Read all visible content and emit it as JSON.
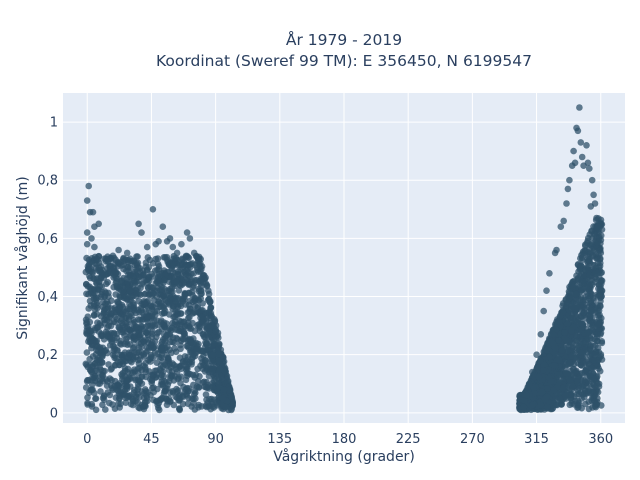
{
  "chart_data": {
    "type": "scatter",
    "title_line1": "År 1979 - 2019",
    "title_line2": "Koordinat (Sweref 99 TM): E 356450, N 6199547",
    "xlabel": "Vågriktning (grader)",
    "ylabel": "Signifikant våghöjd (m)",
    "xlim": [
      -17,
      377
    ],
    "ylim": [
      -0.035,
      1.1
    ],
    "x_ticks": [
      0,
      45,
      90,
      135,
      180,
      225,
      270,
      315,
      360
    ],
    "x_tick_labels": [
      "0",
      "45",
      "90",
      "135",
      "180",
      "225",
      "270",
      "315",
      "360"
    ],
    "y_ticks": [
      0,
      0.2,
      0.4,
      0.6,
      0.8,
      1
    ],
    "y_tick_labels": [
      "0",
      "0,2",
      "0,4",
      "0,6",
      "0,8",
      "1"
    ],
    "grid": true,
    "marker_color": "#2f5269",
    "plot_background": "#e5ecf6",
    "clusters": [
      {
        "x_min": -1,
        "x_max": 102,
        "y_min": 0.0,
        "y_max_typical": 0.5,
        "y_max": 0.78
      },
      {
        "x_min": 303,
        "x_max": 361,
        "y_min": 0.0,
        "y_max_typical": 0.7,
        "y_max": 1.05
      }
    ],
    "points": [
      [
        1,
        0.78
      ],
      [
        0,
        0.73
      ],
      [
        2,
        0.69
      ],
      [
        4,
        0.69
      ],
      [
        5,
        0.64
      ],
      [
        0,
        0.62
      ],
      [
        3,
        0.6
      ],
      [
        8,
        0.65
      ],
      [
        0,
        0.58
      ],
      [
        5,
        0.57
      ],
      [
        12,
        0.53
      ],
      [
        18,
        0.54
      ],
      [
        22,
        0.56
      ],
      [
        28,
        0.55
      ],
      [
        30,
        0.53
      ],
      [
        36,
        0.65
      ],
      [
        38,
        0.62
      ],
      [
        42,
        0.57
      ],
      [
        46,
        0.7
      ],
      [
        48,
        0.58
      ],
      [
        50,
        0.59
      ],
      [
        53,
        0.64
      ],
      [
        56,
        0.59
      ],
      [
        58,
        0.6
      ],
      [
        60,
        0.57
      ],
      [
        63,
        0.55
      ],
      [
        66,
        0.58
      ],
      [
        70,
        0.62
      ],
      [
        72,
        0.6
      ],
      [
        75,
        0.55
      ],
      [
        78,
        0.52
      ],
      [
        82,
        0.46
      ],
      [
        86,
        0.38
      ],
      [
        90,
        0.28
      ],
      [
        93,
        0.15
      ],
      [
        96,
        0.08
      ],
      [
        98,
        0.04
      ],
      [
        99,
        0.01
      ],
      [
        101,
        0.01
      ],
      [
        97,
        0.02
      ],
      [
        95,
        0.05
      ],
      [
        92,
        0.1
      ],
      [
        88,
        0.2
      ],
      [
        85,
        0.3
      ],
      [
        80,
        0.42
      ],
      [
        8,
        0.45
      ],
      [
        15,
        0.4
      ],
      [
        25,
        0.42
      ],
      [
        35,
        0.41
      ],
      [
        304,
        0.01
      ],
      [
        306,
        0.02
      ],
      [
        308,
        0.06
      ],
      [
        310,
        0.1
      ],
      [
        312,
        0.14
      ],
      [
        315,
        0.2
      ],
      [
        318,
        0.27
      ],
      [
        320,
        0.35
      ],
      [
        322,
        0.42
      ],
      [
        324,
        0.48
      ],
      [
        328,
        0.55
      ],
      [
        329,
        0.56
      ],
      [
        332,
        0.64
      ],
      [
        334,
        0.66
      ],
      [
        336,
        0.72
      ],
      [
        337,
        0.77
      ],
      [
        338,
        0.8
      ],
      [
        340,
        0.85
      ],
      [
        341,
        0.9
      ],
      [
        342,
        0.86
      ],
      [
        343,
        0.98
      ],
      [
        344,
        0.97
      ],
      [
        346,
        0.93
      ],
      [
        347,
        0.88
      ],
      [
        348,
        0.85
      ],
      [
        350,
        0.92
      ],
      [
        351,
        0.86
      ],
      [
        352,
        0.84
      ],
      [
        353,
        0.71
      ],
      [
        354,
        0.8
      ],
      [
        355,
        0.75
      ],
      [
        356,
        0.72
      ],
      [
        357,
        0.67
      ],
      [
        358,
        0.64
      ],
      [
        359,
        0.6
      ],
      [
        360,
        0.55
      ],
      [
        358,
        0.4
      ],
      [
        356,
        0.2
      ],
      [
        357,
        0.03
      ],
      [
        345,
        1.05
      ]
    ]
  }
}
